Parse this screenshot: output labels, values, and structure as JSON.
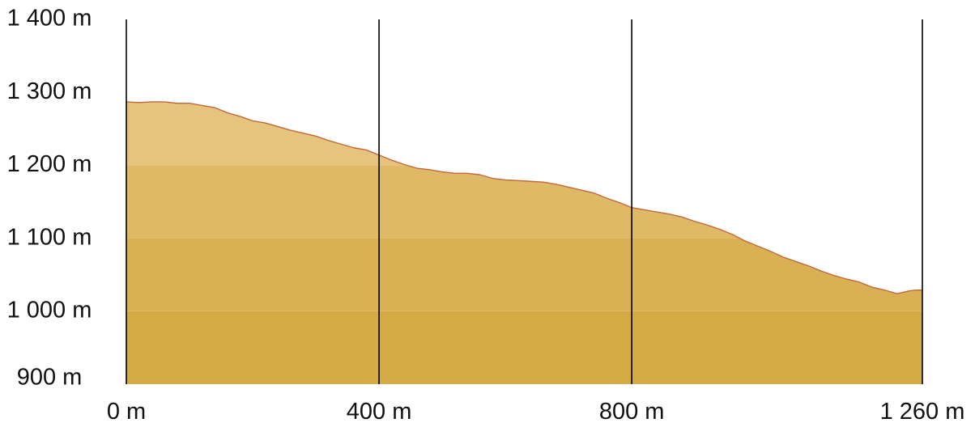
{
  "chart_data": {
    "type": "area",
    "title": "",
    "xlabel": "",
    "ylabel": "",
    "xlim": [
      0,
      1260
    ],
    "ylim": [
      900,
      1400
    ],
    "x_ticks": [
      {
        "value": 0,
        "label": "0 m"
      },
      {
        "value": 400,
        "label": "400 m"
      },
      {
        "value": 800,
        "label": "800 m"
      },
      {
        "value": 1260,
        "label": "1 260 m"
      }
    ],
    "y_ticks": [
      {
        "value": 1400,
        "label": "1 400 m"
      },
      {
        "value": 1300,
        "label": "1 300 m"
      },
      {
        "value": 1200,
        "label": "1 200 m"
      },
      {
        "value": 1100,
        "label": "1 100 m"
      },
      {
        "value": 1000,
        "label": "1 000 m"
      },
      {
        "value": 900,
        "label": "900 m"
      }
    ],
    "vertical_gridlines_at": [
      0,
      400,
      800,
      1260
    ],
    "series": [
      {
        "x": [
          0,
          20,
          40,
          60,
          80,
          100,
          120,
          140,
          160,
          180,
          200,
          220,
          240,
          260,
          280,
          300,
          320,
          340,
          360,
          380,
          400,
          420,
          440,
          460,
          480,
          500,
          520,
          540,
          560,
          580,
          600,
          620,
          640,
          660,
          680,
          700,
          720,
          740,
          760,
          780,
          800,
          820,
          840,
          860,
          880,
          900,
          920,
          940,
          960,
          980,
          1000,
          1020,
          1040,
          1060,
          1080,
          1100,
          1120,
          1140,
          1160,
          1180,
          1200,
          1220,
          1240,
          1250,
          1260
        ],
        "values": [
          1287,
          1286,
          1287,
          1287,
          1285,
          1285,
          1282,
          1279,
          1272,
          1267,
          1261,
          1258,
          1253,
          1248,
          1244,
          1240,
          1234,
          1229,
          1224,
          1221,
          1214,
          1207,
          1201,
          1196,
          1194,
          1191,
          1189,
          1189,
          1187,
          1182,
          1180,
          1179,
          1178,
          1177,
          1174,
          1170,
          1166,
          1162,
          1155,
          1149,
          1142,
          1139,
          1136,
          1133,
          1129,
          1123,
          1118,
          1112,
          1105,
          1096,
          1089,
          1082,
          1074,
          1068,
          1062,
          1055,
          1049,
          1044,
          1040,
          1033,
          1029,
          1024,
          1028,
          1029,
          1029
        ]
      }
    ],
    "colors": {
      "fill_band_900_1000": "#d4aa44",
      "fill_band_1000_1100": "#dab054",
      "fill_band_1100_1200": "#e0b966",
      "fill_band_1200_1300": "#e6c47e",
      "outline": "#c2683a",
      "gridline": "#000000"
    }
  }
}
